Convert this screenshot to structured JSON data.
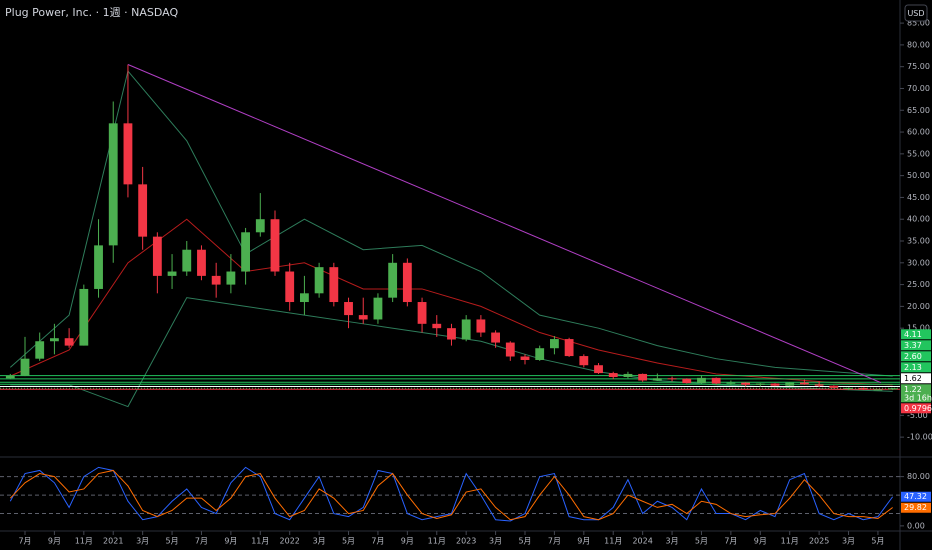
{
  "chart_data": {
    "type": "candlestick",
    "title": "Plug Power, Inc. · 1週 · NASDAQ",
    "currency": "USD",
    "x": [
      0,
      1,
      2,
      3,
      4,
      5,
      6,
      7,
      8,
      9,
      10,
      11,
      12,
      13,
      14,
      15,
      16,
      17,
      18,
      19,
      20,
      21,
      22,
      23,
      24,
      25,
      26,
      27,
      28,
      29,
      30,
      31,
      32,
      33,
      34,
      35,
      36,
      37,
      38,
      39,
      40,
      41,
      42,
      43,
      44,
      45,
      46,
      47,
      48,
      49,
      50,
      51,
      52,
      53,
      54,
      55,
      56,
      57,
      58,
      59,
      60
    ],
    "open": [
      3.5,
      4.1,
      8,
      12,
      12.7,
      11,
      24,
      34,
      62,
      48,
      36,
      27,
      28,
      33,
      27,
      25,
      28,
      37,
      40,
      28,
      21,
      23,
      29,
      21,
      18,
      17,
      22,
      30,
      21,
      16,
      15,
      12.4,
      17,
      14,
      11.7,
      8.5,
      7.7,
      10.4,
      12.5,
      8.6,
      6.5,
      4.7,
      3.8,
      4.5,
      3,
      3.5,
      3.4,
      2.4,
      3.6,
      2.3,
      2.5,
      2,
      2.3,
      1.8,
      2.5,
      2.1,
      1.8,
      1.3,
      1.3,
      0.9,
      0.95
    ],
    "high": [
      4.5,
      13,
      14,
      16,
      15,
      25,
      40,
      67,
      75.5,
      52,
      37,
      32,
      35,
      34,
      30,
      32,
      38,
      46,
      42,
      30,
      27,
      30,
      30,
      22,
      22,
      23,
      32,
      31,
      22,
      18,
      16,
      18,
      18,
      14.5,
      12,
      9,
      11,
      13.2,
      12.8,
      9,
      7,
      5,
      5,
      4.6,
      4.6,
      3.9,
      3.5,
      4.2,
      3.7,
      3,
      2.6,
      2.4,
      2.4,
      2.6,
      3.2,
      2.8,
      1.9,
      1.4,
      1.4,
      1.0,
      1.3
    ],
    "low": [
      3.3,
      4,
      7.5,
      9,
      10.5,
      11,
      22,
      30,
      45,
      33,
      23,
      24,
      27,
      26,
      22,
      23,
      25,
      36,
      27,
      19,
      18,
      22,
      20,
      15,
      16,
      16,
      21,
      20,
      14,
      13,
      11,
      12,
      13,
      10.5,
      7.5,
      6.7,
      7.5,
      9,
      8.4,
      6,
      4.5,
      3.3,
      3.5,
      2.7,
      2.9,
      2.8,
      2.3,
      2.3,
      2.1,
      1.9,
      1.6,
      1.6,
      1.7,
      1.7,
      2,
      1.5,
      1.2,
      0.8,
      0.8,
      0.7,
      0.8
    ],
    "close": [
      4.1,
      8,
      12,
      12.7,
      11,
      24,
      34,
      62,
      48,
      36,
      27,
      28,
      33,
      27,
      25,
      28,
      37,
      40,
      28,
      21,
      23,
      29,
      21,
      18,
      17,
      22,
      30,
      21,
      16,
      15,
      12.4,
      17,
      14,
      11.7,
      8.5,
      7.7,
      10.4,
      12.5,
      8.6,
      6.5,
      4.7,
      3.8,
      4.5,
      3,
      3.5,
      3.4,
      2.4,
      3.6,
      2.3,
      2.5,
      2,
      2.3,
      1.8,
      2.5,
      2.1,
      1.8,
      1.3,
      1.3,
      0.9,
      0.95,
      1.22
    ],
    "up_color": "#4caf50",
    "down_color": "#f23645",
    "xlim": [
      -0.7,
      60.5
    ],
    "ylim": [
      -14.1,
      90.3
    ],
    "yticks": [
      {
        "value": 85,
        "label": "85.00"
      },
      {
        "value": 80,
        "label": "80.00"
      },
      {
        "value": 75,
        "label": "75.00"
      },
      {
        "value": 70,
        "label": "70.00"
      },
      {
        "value": 65,
        "label": "65.00"
      },
      {
        "value": 60,
        "label": "60.00"
      },
      {
        "value": 55,
        "label": "55.00"
      },
      {
        "value": 50,
        "label": "50.00"
      },
      {
        "value": 45,
        "label": "45.00"
      },
      {
        "value": 40,
        "label": "40.00"
      },
      {
        "value": 35,
        "label": "35.00"
      },
      {
        "value": 30,
        "label": "30.00"
      },
      {
        "value": 25,
        "label": "25.00"
      },
      {
        "value": 20,
        "label": "20.00"
      },
      {
        "value": 15,
        "label": "15.00"
      },
      {
        "value": -5,
        "label": "-5.00"
      },
      {
        "value": -10,
        "label": "-10.00"
      }
    ],
    "xticks": [
      {
        "value": 1,
        "label": "7月"
      },
      {
        "value": 3,
        "label": "9月"
      },
      {
        "value": 5,
        "label": "11月"
      },
      {
        "value": 7,
        "label": "2021"
      },
      {
        "value": 9,
        "label": "3月"
      },
      {
        "value": 11,
        "label": "5月"
      },
      {
        "value": 13,
        "label": "7月"
      },
      {
        "value": 15,
        "label": "9月"
      },
      {
        "value": 17,
        "label": "11月"
      },
      {
        "value": 19,
        "label": "2022"
      },
      {
        "value": 21,
        "label": "3月"
      },
      {
        "value": 23,
        "label": "5月"
      },
      {
        "value": 25,
        "label": "7月"
      },
      {
        "value": 27,
        "label": "9月"
      },
      {
        "value": 29,
        "label": "11月"
      },
      {
        "value": 31,
        "label": "2023"
      },
      {
        "value": 33,
        "label": "3月"
      },
      {
        "value": 35,
        "label": "5月"
      },
      {
        "value": 37,
        "label": "7月"
      },
      {
        "value": 39,
        "label": "9月"
      },
      {
        "value": 41,
        "label": "11月"
      },
      {
        "value": 43,
        "label": "2024"
      },
      {
        "value": 45,
        "label": "3月"
      },
      {
        "value": 47,
        "label": "5月"
      },
      {
        "value": 49,
        "label": "7月"
      },
      {
        "value": 51,
        "label": "9月"
      },
      {
        "value": 53,
        "label": "11月"
      },
      {
        "value": 55,
        "label": "2025"
      },
      {
        "value": 57,
        "label": "3月"
      },
      {
        "value": 59,
        "label": "5月"
      }
    ],
    "bands": {
      "x": [
        0,
        4,
        8,
        12,
        16,
        20,
        24,
        28,
        32,
        36,
        40,
        44,
        48,
        52,
        56,
        60
      ],
      "upper": [
        6,
        18,
        74,
        58,
        32,
        40,
        33,
        34,
        28,
        18,
        15,
        11,
        8,
        6,
        5,
        4
      ],
      "middle": [
        4,
        10,
        30,
        40,
        28,
        30,
        24,
        24,
        20,
        14,
        10,
        7,
        4.5,
        3.5,
        2.5,
        2
      ],
      "lower": [
        2,
        2,
        -3,
        22,
        20,
        18,
        16,
        14,
        12,
        8,
        5,
        3,
        2,
        1.5,
        1,
        0.5
      ],
      "band_color": "#2e7d5b",
      "middle_color": "#b71c1c"
    },
    "trendline": {
      "x": [
        8,
        59.2
      ],
      "y": [
        75.5,
        2.5
      ],
      "color": "#b03fc4"
    },
    "price_lines": [
      {
        "value": 4.11,
        "label": "4.11",
        "color": "#22c55e"
      },
      {
        "value": 3.37,
        "label": "3.37",
        "color": "#22c55e"
      },
      {
        "value": 2.6,
        "label": "2.60",
        "color": "#22c55e"
      },
      {
        "value": 2.13,
        "label": "2.13",
        "color": "#22c55e"
      },
      {
        "value": 1.62,
        "label": "1.62",
        "color": "#ffffff"
      },
      {
        "value": 0.9796,
        "label": "0.9796",
        "color": "#f23645"
      }
    ],
    "countdown": "3d 16h",
    "stoch": {
      "type": "line",
      "ylim": [
        -6.7,
        107
      ],
      "yticks": [
        {
          "value": 80,
          "label": "80.00"
        },
        {
          "value": 0,
          "label": "0.00"
        }
      ],
      "levels": [
        80,
        50,
        20
      ],
      "series": [
        {
          "color": "#2962ff",
          "values": [
            40,
            85,
            90,
            70,
            30,
            80,
            95,
            90,
            40,
            10,
            15,
            40,
            60,
            30,
            20,
            70,
            95,
            80,
            20,
            10,
            45,
            80,
            20,
            15,
            30,
            90,
            85,
            20,
            10,
            15,
            20,
            85,
            50,
            10,
            8,
            20,
            80,
            85,
            15,
            10,
            10,
            30,
            75,
            20,
            40,
            30,
            10,
            60,
            20,
            20,
            10,
            25,
            15,
            75,
            85,
            20,
            10,
            20,
            10,
            15,
            47.32
          ]
        },
        {
          "color": "#ff6d00",
          "values": [
            45,
            70,
            85,
            80,
            55,
            60,
            85,
            90,
            65,
            25,
            15,
            25,
            45,
            45,
            25,
            45,
            80,
            85,
            45,
            15,
            25,
            60,
            45,
            20,
            25,
            65,
            85,
            50,
            20,
            12,
            18,
            55,
            60,
            30,
            10,
            15,
            50,
            80,
            50,
            15,
            10,
            20,
            50,
            40,
            30,
            35,
            20,
            40,
            35,
            20,
            15,
            18,
            20,
            45,
            75,
            50,
            20,
            15,
            15,
            12,
            29.82
          ]
        }
      ]
    }
  }
}
